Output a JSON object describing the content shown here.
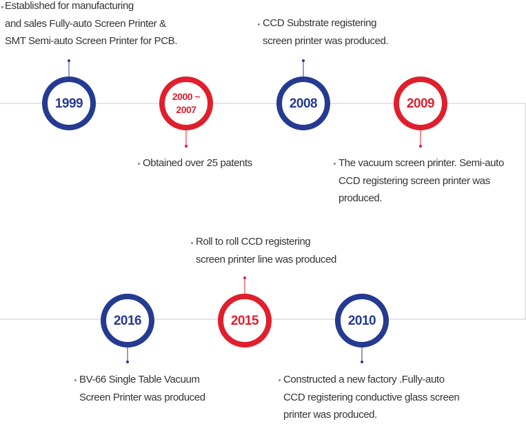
{
  "colors": {
    "blue": "#253a91",
    "red": "#e01f2d",
    "line": "#c8c8c8"
  },
  "events": [
    {
      "year": "1999",
      "color": "blue",
      "text": "Established for manufacturing\nand sales Fully-auto Screen Printer &\nSMT Semi-auto Screen Printer for PCB."
    },
    {
      "year": "2000 ~\n2007",
      "color": "red",
      "text": "Obtained over 25 patents"
    },
    {
      "year": "2008",
      "color": "blue",
      "text": "CCD Substrate registering\nscreen printer was produced."
    },
    {
      "year": "2009",
      "color": "red",
      "text": "The vacuum screen printer. Semi-auto\nCCD registering screen printer was\nproduced."
    },
    {
      "year": "2010",
      "color": "blue",
      "text": "Constructed a new factory .Fully-auto\nCCD registering conductive glass screen\nprinter was produced."
    },
    {
      "year": "2015",
      "color": "red",
      "text": "Roll to roll CCD registering\nscreen printer line  was produced"
    },
    {
      "year": "2016",
      "color": "blue",
      "text": "BV-66 Single Table Vacuum\nScreen Printer was produced"
    }
  ]
}
